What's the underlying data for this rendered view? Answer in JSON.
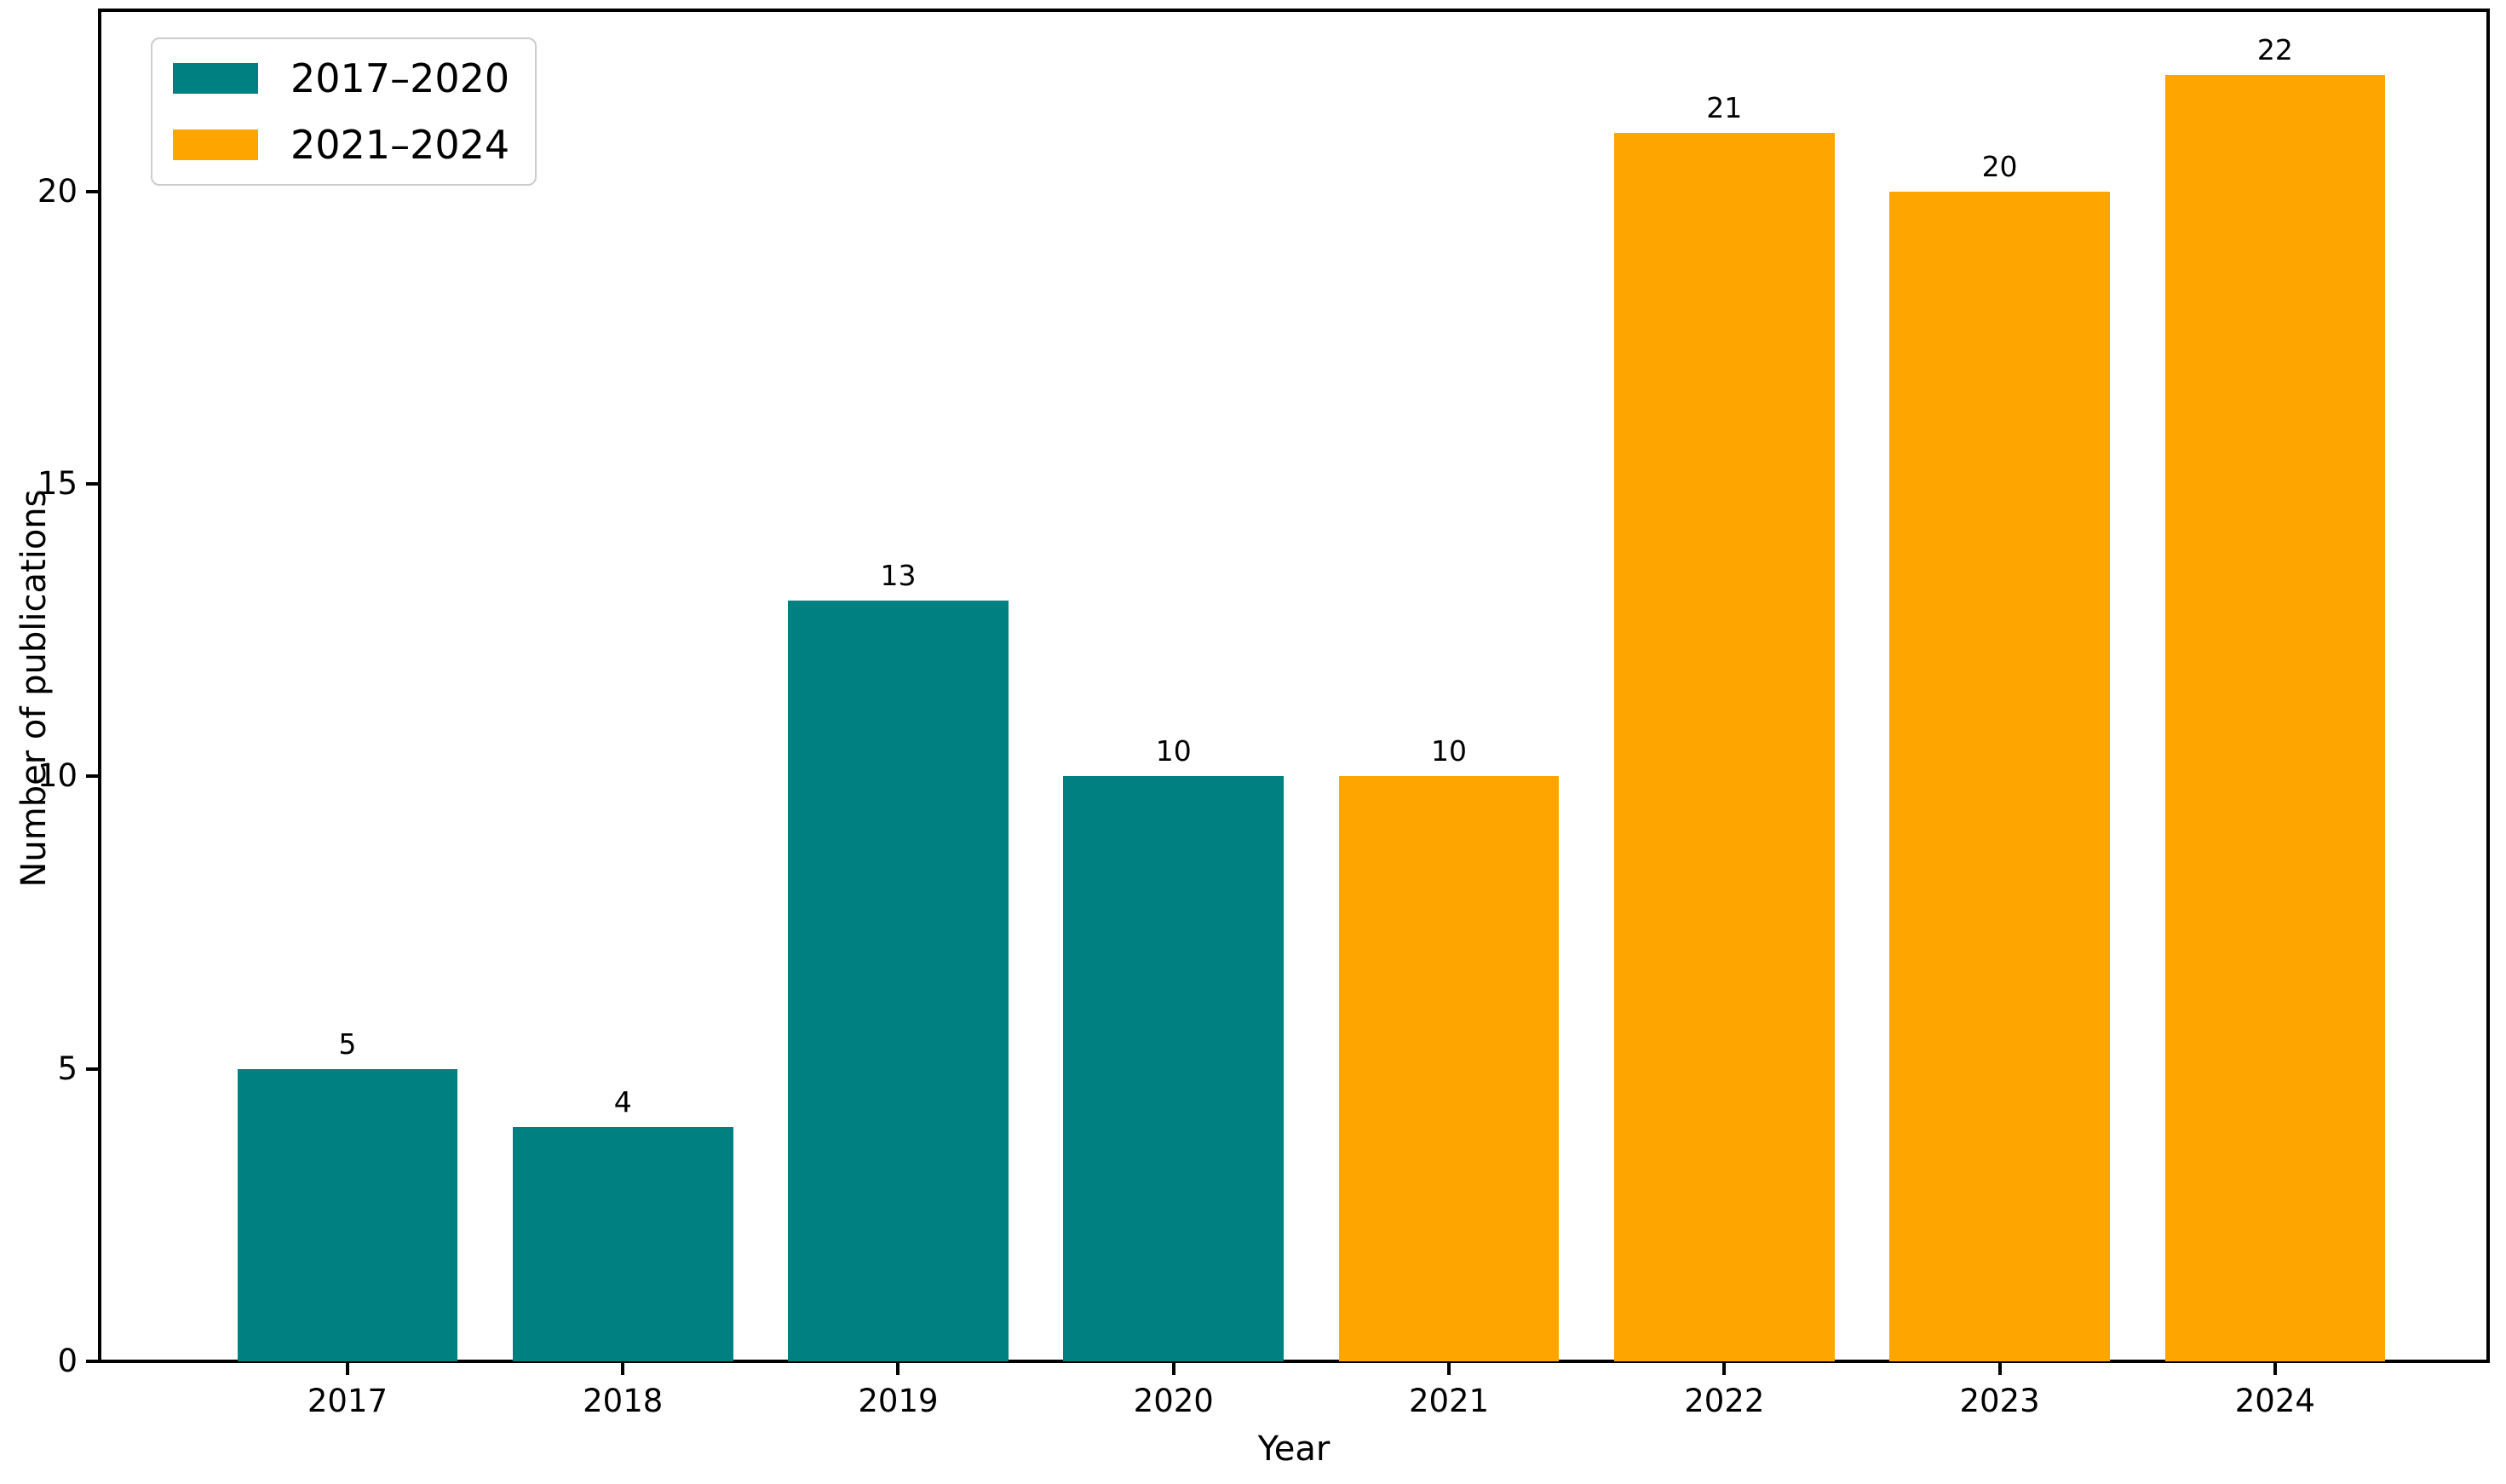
{
  "chart_data": {
    "type": "bar",
    "title": "",
    "xlabel": "Year",
    "ylabel": "Number of publications",
    "categories": [
      "2017",
      "2018",
      "2019",
      "2020",
      "2021",
      "2022",
      "2023",
      "2024"
    ],
    "values": [
      5,
      4,
      13,
      10,
      10,
      21,
      20,
      22
    ],
    "bar_value_labels": [
      "5",
      "4",
      "13",
      "10",
      "10",
      "21",
      "20",
      "22"
    ],
    "bar_series_index": [
      0,
      0,
      0,
      0,
      1,
      1,
      1,
      1
    ],
    "series": [
      {
        "name": "2017–2020",
        "color": "#008080",
        "categories": [
          "2017",
          "2018",
          "2019",
          "2020"
        ],
        "values": [
          5,
          4,
          13,
          10
        ]
      },
      {
        "name": "2021–2024",
        "color": "#FFA500",
        "categories": [
          "2021",
          "2022",
          "2023",
          "2024"
        ],
        "values": [
          10,
          21,
          20,
          22
        ]
      }
    ],
    "ylim": [
      0,
      23.1
    ],
    "yticks": [
      0,
      5,
      10,
      15,
      20
    ],
    "bar_width_fraction": 0.8,
    "grid": false,
    "legend_position": "upper left",
    "axis_color": "#000000",
    "background_color": "#ffffff"
  }
}
